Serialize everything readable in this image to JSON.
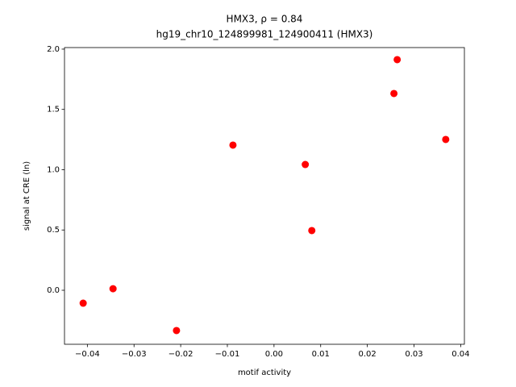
{
  "chart_data": {
    "type": "scatter",
    "title": "HMX3, ρ = 0.84",
    "subtitle": "hg19_chr10_124899981_124900411 (HMX3)",
    "x_label": "motif activity",
    "y_label": "signal at CRE (ln)",
    "color": "#ff0000",
    "x": [
      -0.0409,
      -0.0345,
      -0.0209,
      -0.0088,
      0.0067,
      0.0081,
      0.0257,
      0.0264,
      0.0368
    ],
    "values": [
      -0.107,
      0.013,
      -0.334,
      1.204,
      1.043,
      0.495,
      1.632,
      1.913,
      1.251
    ],
    "xlim": [
      -0.0449,
      0.0408
    ],
    "ylim": [
      -0.448,
      2.013
    ],
    "xticks": [
      {
        "value": -0.04,
        "label": "−0.04"
      },
      {
        "value": -0.03,
        "label": "−0.03"
      },
      {
        "value": -0.02,
        "label": "−0.02"
      },
      {
        "value": -0.01,
        "label": "−0.01"
      },
      {
        "value": 0,
        "label": "0.00"
      },
      0.01,
      0.02,
      0.03,
      0.04
    ],
    "yticks": [
      {
        "value": 0,
        "label": "0.0"
      },
      0.5,
      {
        "value": 1,
        "label": "1.0"
      },
      1.5,
      {
        "value": 2,
        "label": "2.0"
      }
    ],
    "grid": false
  }
}
